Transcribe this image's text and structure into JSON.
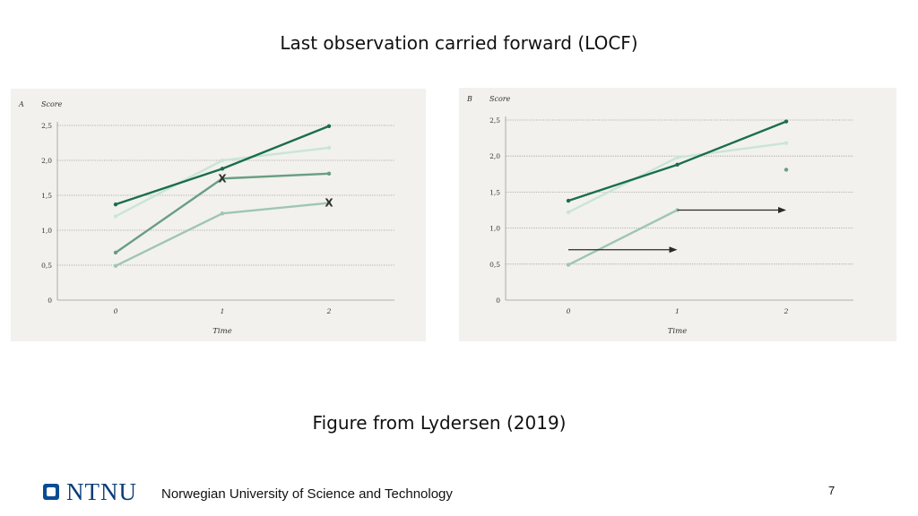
{
  "slide": {
    "title": "Last observation carried forward (LOCF)",
    "caption": "Figure from Lydersen (2019)",
    "footer_logo": "NTNU",
    "footer_text": "Norwegian University of Science and Technology",
    "page_number": "7"
  },
  "colors": {
    "dark": "#1b6e4a",
    "mid": "#6a9e82",
    "light": "#9fc6b2",
    "pale": "#c9e5d8",
    "grid": "#9a9a9a",
    "text": "#333333",
    "arrow": "#2a2a2a"
  },
  "chart_data": [
    {
      "type": "line",
      "panel_label": "A",
      "ylabel": "Score",
      "xlabel": "Time",
      "x": [
        0,
        1,
        2
      ],
      "x_ticks": [
        "0",
        "1",
        "2"
      ],
      "y_ticks": [
        "0",
        "0,5",
        "1,0",
        "1,5",
        "2,0",
        "2,5"
      ],
      "ylim": [
        0,
        2.5
      ],
      "grid": true,
      "series": [
        {
          "color": "pale",
          "values": [
            1.2,
            2.0,
            2.18
          ]
        },
        {
          "color": "dark",
          "values": [
            1.37,
            1.88,
            2.49
          ]
        },
        {
          "color": "mid",
          "values": [
            0.68,
            1.74,
            1.81
          ]
        },
        {
          "color": "light",
          "values": [
            0.49,
            1.24,
            1.39
          ]
        }
      ],
      "markers": [
        {
          "label": "X",
          "x": 1,
          "y": 1.74
        },
        {
          "label": "X",
          "x": 2,
          "y": 1.39
        }
      ]
    },
    {
      "type": "line",
      "panel_label": "B",
      "ylabel": "Score",
      "xlabel": "Time",
      "x": [
        0,
        1,
        2
      ],
      "x_ticks": [
        "0",
        "1",
        "2"
      ],
      "y_ticks": [
        "0",
        "0,5",
        "1,0",
        "1,5",
        "2,0",
        "2,5"
      ],
      "ylim": [
        0,
        2.5
      ],
      "grid": true,
      "series": [
        {
          "color": "pale",
          "values": [
            1.22,
            1.98,
            2.18
          ]
        },
        {
          "color": "dark",
          "values": [
            1.38,
            1.88,
            2.48
          ]
        },
        {
          "color": "light",
          "values": [
            0.49,
            1.25,
            null
          ]
        },
        {
          "color": "mid",
          "values": [
            null,
            null,
            1.81
          ]
        }
      ],
      "arrows": [
        {
          "from_x": 0,
          "to_x": 1,
          "y": 0.7
        },
        {
          "from_x": 1,
          "to_x": 2,
          "y": 1.25
        }
      ]
    }
  ]
}
